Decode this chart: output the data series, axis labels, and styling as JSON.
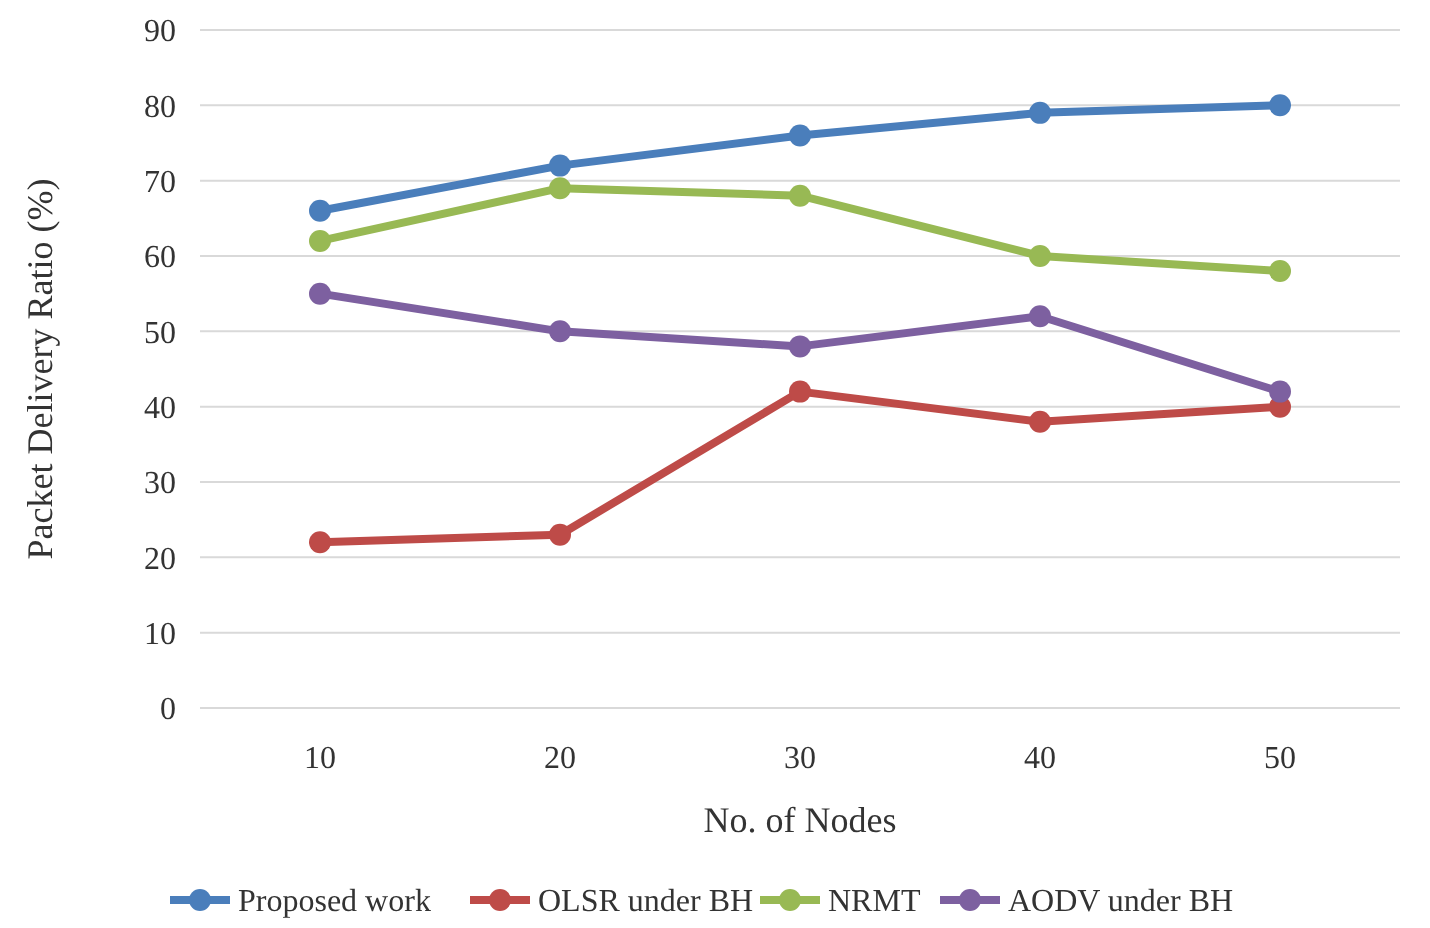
{
  "chart_data": {
    "type": "line",
    "xlabel": "No. of Nodes",
    "ylabel": "Packet Delivery Ratio (%)",
    "categories": [
      "10",
      "20",
      "30",
      "40",
      "50"
    ],
    "series": [
      {
        "name": "Proposed work",
        "color": "#4a7ebb",
        "values": [
          66,
          72,
          76,
          79,
          80
        ]
      },
      {
        "name": "OLSR under BH",
        "color": "#be4b48",
        "values": [
          22,
          23,
          42,
          38,
          40
        ]
      },
      {
        "name": "NRMT",
        "color": "#98b954",
        "values": [
          62,
          69,
          68,
          60,
          58
        ]
      },
      {
        "name": "AODV under BH",
        "color": "#7d60a0",
        "values": [
          55,
          50,
          48,
          52,
          42
        ]
      }
    ],
    "ylim": [
      0,
      90
    ],
    "yticks": [
      0,
      10,
      20,
      30,
      40,
      50,
      60,
      70,
      80,
      90
    ],
    "grid": "y",
    "legend": "bottom",
    "marker": "circle",
    "line_style": "solid"
  }
}
